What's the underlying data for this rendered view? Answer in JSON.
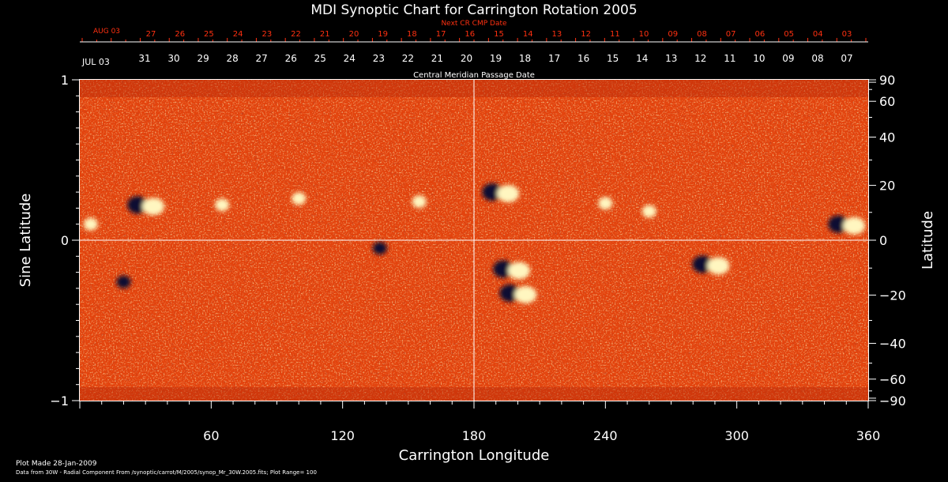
{
  "chart_data": {
    "type": "heatmap",
    "title": "MDI Synoptic Chart for Carrington Rotation 2005",
    "xlabel": "Carrington Longitude",
    "ylabel_left": "Sine Latitude",
    "ylabel_right": "Latitude",
    "xlim": [
      0,
      360
    ],
    "ylim": [
      -1,
      1
    ],
    "x_ticks": [
      60,
      120,
      180,
      240,
      300,
      360
    ],
    "y_ticks_left": [
      1,
      0,
      -1
    ],
    "y_tick_labels_left": [
      "1",
      "0",
      "−1"
    ],
    "y_ticks_right": [
      90,
      60,
      40,
      20,
      0,
      -20,
      -40,
      -60,
      -90
    ],
    "y_tick_labels_right": [
      "90",
      "60",
      "40",
      "20",
      "0",
      "−20",
      "−40",
      "−60",
      "−90"
    ],
    "cmp_axis_label": "Central Meridian Passage Date",
    "cmp_start_label": "JUL 03",
    "cmp_dates": [
      "31",
      "30",
      "29",
      "28",
      "27",
      "26",
      "25",
      "24",
      "23",
      "22",
      "21",
      "20",
      "19",
      "18",
      "17",
      "16",
      "15",
      "14",
      "13",
      "12",
      "11",
      "10",
      "09",
      "08",
      "07"
    ],
    "next_cr_label": "Next CR CMP Date",
    "next_cr_start_label": "AUG 03",
    "next_cr_dates": [
      "27",
      "26",
      "25",
      "24",
      "23",
      "22",
      "21",
      "20",
      "19",
      "18",
      "17",
      "16",
      "15",
      "14",
      "13",
      "12",
      "11",
      "10",
      "09",
      "08",
      "07",
      "06",
      "05",
      "04",
      "03"
    ],
    "colors": {
      "background": "#000000",
      "axis": "#ffffff",
      "next_cr": "#ff3010",
      "field_base": "#e8400c",
      "positive": "#fff6c0",
      "negative": "#0a0a30"
    },
    "active_regions": [
      {
        "lon": 192,
        "sinlat": 0.3,
        "polarity": "mixed"
      },
      {
        "lon": 197,
        "sinlat": -0.18,
        "polarity": "mixed"
      },
      {
        "lon": 200,
        "sinlat": -0.33,
        "polarity": "mixed"
      },
      {
        "lon": 288,
        "sinlat": -0.15,
        "polarity": "mixed"
      },
      {
        "lon": 350,
        "sinlat": 0.1,
        "polarity": "mixed"
      },
      {
        "lon": 30,
        "sinlat": 0.22,
        "polarity": "mixed"
      },
      {
        "lon": 65,
        "sinlat": 0.22,
        "polarity": "positive"
      },
      {
        "lon": 100,
        "sinlat": 0.26,
        "polarity": "positive"
      },
      {
        "lon": 137,
        "sinlat": -0.05,
        "polarity": "negative"
      },
      {
        "lon": 155,
        "sinlat": 0.24,
        "polarity": "positive"
      },
      {
        "lon": 240,
        "sinlat": 0.23,
        "polarity": "positive"
      },
      {
        "lon": 260,
        "sinlat": 0.18,
        "polarity": "positive"
      },
      {
        "lon": 20,
        "sinlat": -0.26,
        "polarity": "negative"
      },
      {
        "lon": 5,
        "sinlat": 0.1,
        "polarity": "positive"
      }
    ]
  },
  "footer": {
    "plot_made": "Plot Made 28-Jan-2009",
    "data_source": "Data from 30W - Radial Component From /synoptic/carrot/M/2005/synop_Mr_30W.2005.fits; Plot Range=  100"
  }
}
